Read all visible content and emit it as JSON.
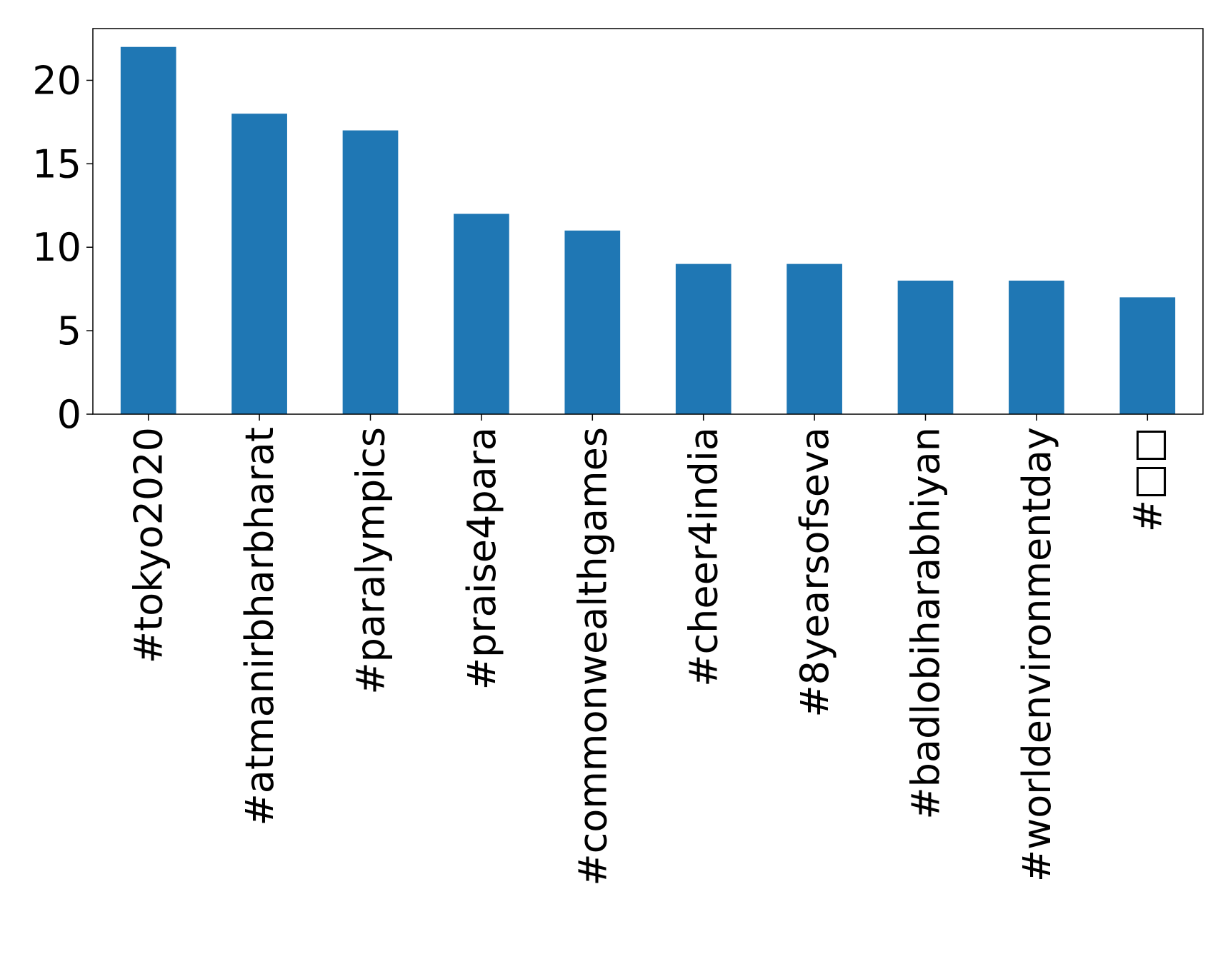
{
  "chart_data": {
    "type": "bar",
    "categories": [
      "#tokyo2020",
      "#atmanirbharbharat",
      "#paralympics",
      "#praise4para",
      "#commonwealthgames",
      "#cheer4india",
      "#8yearsofseva",
      "#badlobiharabhiyan",
      "#worldenvironmentday",
      "#□□"
    ],
    "values": [
      22,
      18,
      17,
      12,
      11,
      9,
      9,
      8,
      8,
      7
    ],
    "color": "#1f77b4",
    "ylim": [
      0,
      23.1
    ],
    "yticks": [
      0,
      5,
      10,
      15,
      20
    ],
    "grid": false
  }
}
